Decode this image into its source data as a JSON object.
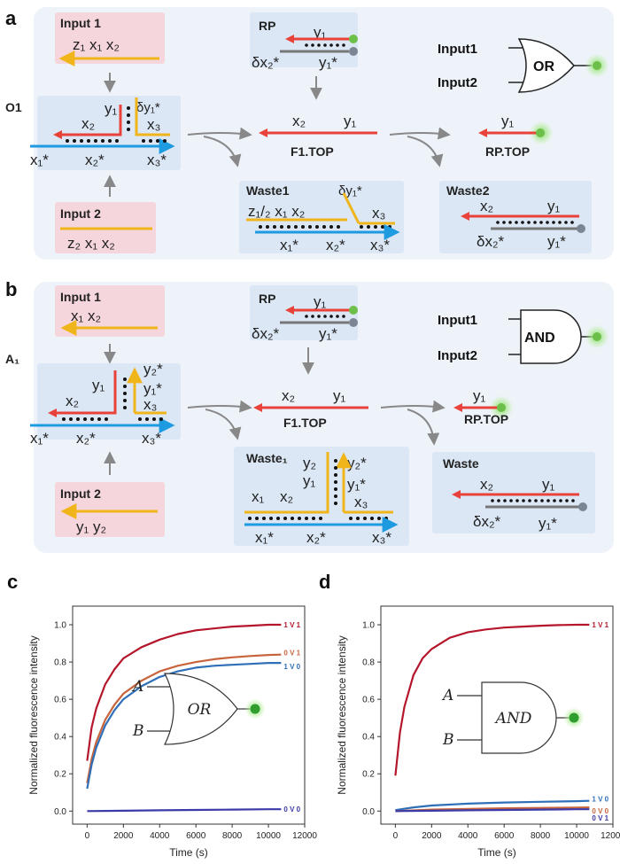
{
  "panels": {
    "a": {
      "letter": "a",
      "input1": {
        "title": "Input 1",
        "seq": "z₁  x₁  x₂"
      },
      "input2": {
        "title": "Input 2",
        "seq": "z₂  x₁  x₂"
      },
      "complex": {
        "title": "O1",
        "top_left": "x₂",
        "top_mid": "y₁",
        "top_right1": "δy₁*",
        "top_right2": "x₃",
        "bottom": [
          "x₁*",
          "x₂*",
          "x₃*"
        ]
      },
      "rp": {
        "title": "RP",
        "top": "y₁",
        "bottom_left": "δx₂*",
        "bottom_right": "y₁*"
      },
      "f1": {
        "left": "x₂",
        "right": "y₁",
        "name": "F1.TOP"
      },
      "rptop": {
        "label": "y₁",
        "name": "RP.TOP"
      },
      "waste1": {
        "title": "Waste1",
        "top": "z₁/₂  x₁  x₂",
        "branch": "δy₁*",
        "branch2": "x₃",
        "bottom": [
          "x₁*",
          "x₂*",
          "x₃*"
        ]
      },
      "waste2": {
        "title": "Waste2",
        "top_left": "x₂",
        "top_right": "y₁",
        "bottom_left": "δx₂*",
        "bottom_right": "y₁*"
      },
      "gate": {
        "in1": "Input1",
        "in2": "Input2",
        "label": "OR"
      }
    },
    "b": {
      "letter": "b",
      "input1": {
        "title": "Input 1",
        "seq": "x₁  x₂"
      },
      "input2": {
        "title": "Input 2",
        "seq": "y₁  y₂"
      },
      "complex": {
        "title": "A₁",
        "top_left": "x₂",
        "top_mid": "y₁",
        "r1": "y₂*",
        "r2": "y₁*",
        "r3": "x₃",
        "bottom": [
          "x₁*",
          "x₂*",
          "x₃*"
        ]
      },
      "rp": {
        "title": "RP",
        "top": "y₁",
        "bottom_left": "δx₂*",
        "bottom_right": "y₁*"
      },
      "f1": {
        "left": "x₂",
        "right": "y₁",
        "name": "F1.TOP"
      },
      "rptop": {
        "label": "y₁",
        "name": "RP.TOP"
      },
      "waste1": {
        "title": "Waste₁",
        "y2": "y₂",
        "y2s": "y₂*",
        "y1": "y₁",
        "y1s": "y₁*",
        "x1": "x₁",
        "x2": "x₂",
        "x3": "x₃",
        "bottom": [
          "x₁*",
          "x₂*",
          "x₃*"
        ]
      },
      "waste": {
        "title": "Waste",
        "top_left": "x₂",
        "top_right": "y₁",
        "bottom_left": "δx₂*",
        "bottom_right": "y₁*"
      },
      "gate": {
        "in1": "Input1",
        "in2": "Input2",
        "label": "AND"
      }
    }
  },
  "chart_data": [
    {
      "letter": "c",
      "type": "line",
      "xlabel": "Time (s)",
      "ylabel": "Normalized fluorescence intensity",
      "xlim": [
        -800,
        12000
      ],
      "ylim": [
        -0.07,
        1.1
      ],
      "xticks": [
        0,
        2000,
        4000,
        6000,
        8000,
        10000,
        12000
      ],
      "yticks": [
        0.0,
        0.2,
        0.4,
        0.6,
        0.8,
        1.0
      ],
      "gate": {
        "a": "A",
        "b": "B",
        "label": "OR"
      },
      "series": [
        {
          "name": "1 V 1",
          "color": "#b5162b",
          "x": [
            0,
            250,
            500,
            1000,
            1500,
            2000,
            3000,
            4000,
            5000,
            6000,
            7000,
            8000,
            9000,
            10000,
            10700
          ],
          "y": [
            0.27,
            0.45,
            0.55,
            0.68,
            0.76,
            0.82,
            0.88,
            0.92,
            0.95,
            0.97,
            0.98,
            0.99,
            0.995,
            1.0,
            1.0
          ]
        },
        {
          "name": "0 V 1",
          "color": "#c8643c",
          "x": [
            0,
            250,
            500,
            1000,
            1500,
            2000,
            3000,
            4000,
            5000,
            6000,
            7000,
            8000,
            9000,
            10000,
            10700
          ],
          "y": [
            0.15,
            0.28,
            0.37,
            0.49,
            0.57,
            0.63,
            0.7,
            0.75,
            0.78,
            0.8,
            0.815,
            0.825,
            0.832,
            0.838,
            0.84
          ]
        },
        {
          "name": "1 V 0",
          "color": "#2f6fb8",
          "x": [
            0,
            250,
            500,
            1000,
            1500,
            2000,
            3000,
            4000,
            5000,
            6000,
            7000,
            8000,
            9000,
            10000,
            10700
          ],
          "y": [
            0.12,
            0.25,
            0.34,
            0.46,
            0.54,
            0.6,
            0.67,
            0.72,
            0.75,
            0.77,
            0.78,
            0.785,
            0.79,
            0.795,
            0.795
          ]
        },
        {
          "name": "0 V 0",
          "color": "#3b3aa8",
          "x": [
            0,
            2000,
            4000,
            6000,
            8000,
            10000,
            10700
          ],
          "y": [
            0.0,
            0.002,
            0.004,
            0.006,
            0.008,
            0.01,
            0.01
          ]
        }
      ]
    },
    {
      "letter": "d",
      "type": "line",
      "xlabel": "Time (s)",
      "ylabel": "Normalized fluorescence intensity",
      "xlim": [
        -800,
        12000
      ],
      "ylim": [
        -0.07,
        1.1
      ],
      "xticks": [
        0,
        2000,
        4000,
        6000,
        8000,
        10000,
        12000
      ],
      "yticks": [
        0.0,
        0.2,
        0.4,
        0.6,
        0.8,
        1.0
      ],
      "gate": {
        "a": "A",
        "b": "B",
        "label": "AND"
      },
      "series": [
        {
          "name": "1 V 1",
          "color": "#b5162b",
          "x": [
            0,
            250,
            500,
            1000,
            1500,
            2000,
            3000,
            4000,
            5000,
            6000,
            7000,
            8000,
            9000,
            10000,
            10700
          ],
          "y": [
            0.19,
            0.42,
            0.56,
            0.73,
            0.82,
            0.87,
            0.93,
            0.96,
            0.975,
            0.985,
            0.99,
            0.995,
            0.998,
            1.0,
            1.0
          ]
        },
        {
          "name": "1 V 0",
          "color": "#2f6fb8",
          "x": [
            0,
            1000,
            2000,
            4000,
            6000,
            8000,
            10000,
            10700
          ],
          "y": [
            0.005,
            0.02,
            0.03,
            0.04,
            0.046,
            0.05,
            0.053,
            0.055
          ]
        },
        {
          "name": "0 V 0",
          "color": "#c8643c",
          "x": [
            0,
            2000,
            4000,
            6000,
            8000,
            10000,
            10700
          ],
          "y": [
            0.0,
            0.008,
            0.012,
            0.015,
            0.017,
            0.019,
            0.02
          ]
        },
        {
          "name": "0 V 1",
          "color": "#3b3aa8",
          "x": [
            0,
            2000,
            4000,
            6000,
            8000,
            10000,
            10700
          ],
          "y": [
            0.0,
            0.002,
            0.004,
            0.006,
            0.008,
            0.01,
            0.01
          ]
        }
      ]
    }
  ]
}
